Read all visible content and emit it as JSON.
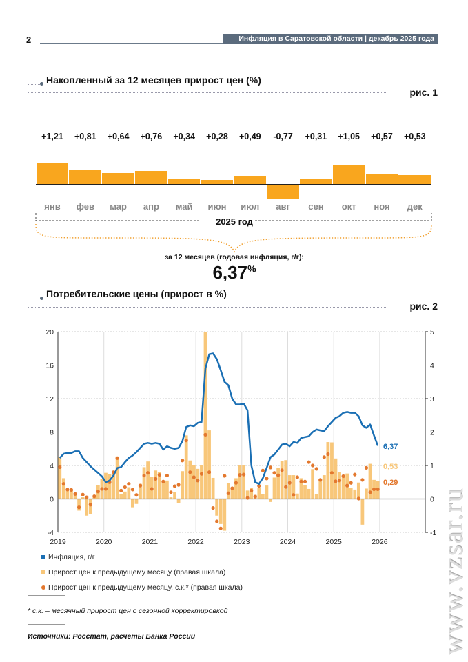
{
  "header": {
    "page_number": "2",
    "title": "Инфляция в Саратовской области | декабрь 2025 года"
  },
  "figure1": {
    "title": "Накопленный за 12 месяцев прирост цен (%)",
    "fig_label": "рис. 1",
    "months": [
      "янв",
      "фев",
      "мар",
      "апр",
      "май",
      "июн",
      "июл",
      "авг",
      "сен",
      "окт",
      "ноя",
      "дек"
    ],
    "value_labels": [
      "+1,21",
      "+0,81",
      "+0,64",
      "+0,76",
      "+0,34",
      "+0,28",
      "+0,49",
      "-0,77",
      "+0,31",
      "+1,05",
      "+0,57",
      "+0,53"
    ],
    "values": [
      1.21,
      0.81,
      0.64,
      0.76,
      0.34,
      0.28,
      0.49,
      -0.77,
      0.31,
      1.05,
      0.57,
      0.53
    ],
    "year_label": "2025 год",
    "annual_caption": "за 12 месяцев (годовая инфляция, г/г):",
    "annual_value": "6,37",
    "annual_unit": "%",
    "bar_color": "#f9a61e"
  },
  "figure2": {
    "title": "Потребительские цены (прирост в %)",
    "fig_label": "рис. 2",
    "legend": [
      "Инфляция, г/г",
      "Прирост цен к предыдущему месяцу (правая шкала)",
      "Прирост цен к предыдущему месяцу, с.к.* (правая шкала)"
    ],
    "end_labels": {
      "inflation": "6,37",
      "mom": "0,53",
      "sa": "0,29"
    },
    "footnote": "* с.к. – месячный прирост цен с сезонной корректировкой",
    "sources": "Источники: Росстат, расчеты Банка России"
  },
  "chart_data": {
    "type": "bar+line+scatter",
    "start": "2019-01",
    "end": "2025-12",
    "x_ticks": [
      "2019",
      "2020",
      "2021",
      "2022",
      "2023",
      "2024",
      "2025",
      "2026"
    ],
    "ylim_left": [
      -4,
      20
    ],
    "yticks_left": [
      "-4",
      "0",
      "4",
      "8",
      "12",
      "16",
      "20"
    ],
    "ylim_right": [
      -1,
      5
    ],
    "yticks_right": [
      "-1",
      "0",
      "1",
      "2",
      "3",
      "4",
      "5"
    ],
    "colors": {
      "inflation": "#1a6fb4",
      "mom": "#f8c77a",
      "sa": "#e3782e"
    },
    "series": [
      {
        "name": "Инфляция, г/г",
        "axis": "left",
        "type": "line",
        "values": [
          4.9,
          5.4,
          5.5,
          5.5,
          5.7,
          5.7,
          4.9,
          4.4,
          3.9,
          3.5,
          3.1,
          2.7,
          2.0,
          2.2,
          2.8,
          3.7,
          3.8,
          4.4,
          4.9,
          5.2,
          5.6,
          6.1,
          6.6,
          6.7,
          6.6,
          6.7,
          6.6,
          5.9,
          6.3,
          6.1,
          6.0,
          6.1,
          6.9,
          8.6,
          8.8,
          8.7,
          9.1,
          9.2,
          15.6,
          17.3,
          17.4,
          16.7,
          15.4,
          14.0,
          13.6,
          12.0,
          11.3,
          11.3,
          11.4,
          10.6,
          4.0,
          2.0,
          1.8,
          2.5,
          3.7,
          5.0,
          5.3,
          5.9,
          6.5,
          6.6,
          6.3,
          6.8,
          6.7,
          7.3,
          7.4,
          7.5,
          8.0,
          8.3,
          8.2,
          8.1,
          8.7,
          9.2,
          9.7,
          9.9,
          10.3,
          10.4,
          10.3,
          10.3,
          9.9,
          8.8,
          8.5,
          8.9,
          7.6,
          6.37
        ]
      },
      {
        "name": "Прирост цен к предыдущему месяцу (правая шкала)",
        "axis": "right",
        "type": "bar",
        "values": [
          1.25,
          0.62,
          0.3,
          0.25,
          0.15,
          -0.35,
          0.05,
          -0.5,
          -0.45,
          0.1,
          0.42,
          0.6,
          0.78,
          0.75,
          0.8,
          1.27,
          0.15,
          0.22,
          0.35,
          -0.25,
          -0.15,
          0.45,
          0.95,
          1.12,
          0.65,
          0.85,
          0.8,
          0.55,
          0.55,
          0.05,
          0.2,
          -0.12,
          0.83,
          1.9,
          1.15,
          1.0,
          0.9,
          1.0,
          5.3,
          2.05,
          0.63,
          -0.5,
          -0.75,
          -0.95,
          0.48,
          0.3,
          0.62,
          1.0,
          1.02,
          0.25,
          0.32,
          0.12,
          0.34,
          0.15,
          0.4,
          -0.09,
          0.64,
          0.92,
          1.13,
          1.16,
          0.71,
          0.71,
          0.16,
          0.62,
          0.42,
          0.3,
          0.89,
          0.15,
          0.58,
          0.71,
          1.7,
          1.69,
          1.21,
          0.81,
          0.64,
          0.76,
          0.34,
          0.28,
          0.49,
          -0.77,
          0.31,
          1.05,
          0.57,
          0.53
        ]
      },
      {
        "name": "Прирост цен к предыдущему месяцу, с.к.* (правая шкала)",
        "axis": "right",
        "type": "scatter",
        "values": [
          0.95,
          0.45,
          0.28,
          0.27,
          0.15,
          -0.25,
          0.13,
          0.05,
          -0.17,
          0.08,
          0.22,
          0.3,
          0.3,
          0.5,
          0.8,
          1.22,
          0.25,
          0.35,
          0.45,
          0.28,
          0.12,
          0.4,
          0.7,
          0.78,
          0.3,
          0.6,
          0.72,
          0.52,
          0.7,
          0.2,
          0.38,
          0.42,
          1.15,
          1.75,
          0.8,
          0.65,
          0.55,
          0.75,
          1.92,
          0.8,
          -0.27,
          -0.67,
          -0.88,
          0.69,
          0.17,
          0.32,
          0.48,
          0.72,
          0.73,
          0.03,
          0.25,
          0.07,
          0.39,
          0.85,
          0.61,
          0.94,
          0.78,
          0.71,
          0.86,
          0.36,
          0.48,
          0.12,
          0.65,
          0.52,
          0.52,
          1.1,
          1.0,
          0.9,
          0.57,
          1.25,
          1.34,
          0.78,
          0.53,
          0.55,
          0.68,
          0.4,
          0.48,
          0.73,
          0.01,
          0.57,
          0.93,
          0.2,
          0.29,
          0.29
        ]
      }
    ]
  },
  "watermark": "www.vzsar.ru"
}
